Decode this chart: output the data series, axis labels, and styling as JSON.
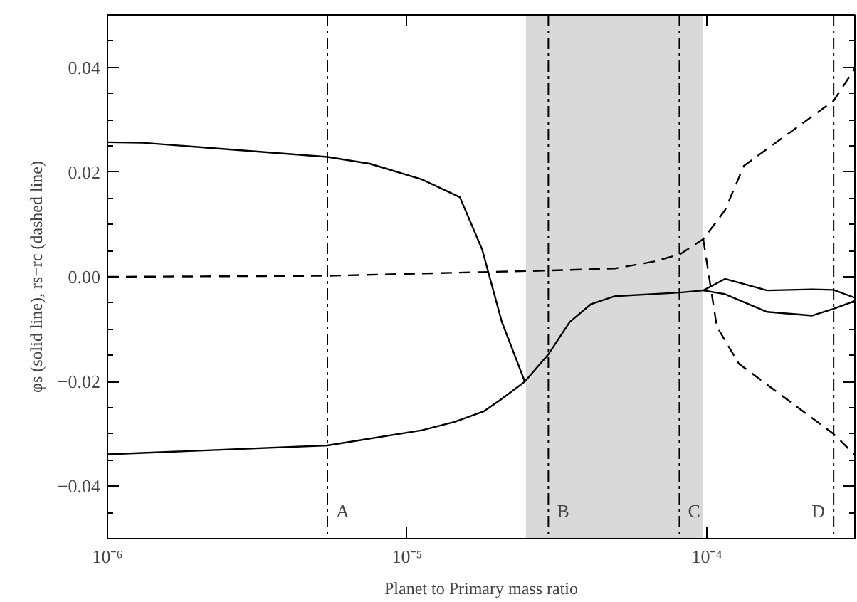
{
  "chart_data": {
    "type": "line",
    "xlabel": "Planet to Primary mass ratio",
    "ylabel": "φs (solid line), rs−rc (dashed line)",
    "log": "x",
    "grid": false,
    "marker": "none",
    "xlim": [
      1e-06,
      0.000312
    ],
    "ylim": [
      -0.05,
      0.05
    ],
    "xticks": [
      {
        "value": 1e-06,
        "label": "10⁻⁶"
      },
      {
        "value": 1e-05,
        "label": "10⁻⁵"
      },
      {
        "value": 0.0001,
        "label": "10⁻⁴"
      }
    ],
    "yticks": [
      {
        "value": -0.04,
        "label": "−0.04"
      },
      {
        "value": -0.02,
        "label": "−0.02"
      },
      {
        "value": 0,
        "label": "0.00"
      },
      {
        "value": 0.02,
        "label": "0.02"
      },
      {
        "value": 0.04,
        "label": "0.04"
      }
    ],
    "series": [
      {
        "color": "#000000",
        "line_style": "solid",
        "x": [
          1e-06,
          1.31e-06,
          5.42e-06,
          7.5e-06,
          1.12e-05,
          1.5e-05,
          1.78e-05,
          2.07e-05,
          2.47e-05
        ],
        "values": [
          0.0257,
          0.0256,
          0.0229,
          0.0216,
          0.0186,
          0.0152,
          0.0052,
          -0.0086,
          -0.02
        ]
      },
      {
        "color": "#000000",
        "line_style": "solid",
        "x": [
          1e-06,
          5.42e-06,
          1.12e-05,
          1.44e-05,
          1.8e-05,
          2.07e-05,
          2.47e-05,
          2.96e-05,
          3.49e-05,
          4.11e-05,
          4.94e-05,
          8.14e-05,
          9.73e-05,
          0.000115,
          0.000159,
          0.000225,
          0.000265,
          0.000312
        ],
        "values": [
          -0.0339,
          -0.0322,
          -0.0293,
          -0.0277,
          -0.0257,
          -0.0233,
          -0.02,
          -0.0148,
          -0.0086,
          -0.0052,
          -0.0037,
          -0.003,
          -0.0026,
          -0.0004,
          -0.0026,
          -0.0024,
          -0.0025,
          -0.004
        ]
      },
      {
        "color": "#000000",
        "line_style": "solid",
        "x": [
          9.73e-05,
          0.000115,
          0.000159,
          0.000225,
          0.000265,
          0.000312
        ],
        "values": [
          -0.0026,
          -0.0033,
          -0.0067,
          -0.0074,
          -0.0061,
          -0.0046
        ]
      },
      {
        "color": "#000000",
        "line_style": "dashed",
        "x": [
          1e-06,
          5.42e-06,
          2.96e-05,
          4.94e-05,
          6.64e-05,
          8.14e-05,
          9.73e-05,
          0.000115,
          0.000133,
          0.000265,
          0.000312
        ],
        "values": [
          0.0,
          0.0002,
          0.0012,
          0.0016,
          0.0029,
          0.0043,
          0.0072,
          0.0127,
          0.0212,
          0.0336,
          0.0398
        ]
      },
      {
        "color": "#000000",
        "line_style": "dashed",
        "x": [
          9.73e-05,
          0.000108,
          0.000128,
          0.000265,
          0.000312
        ],
        "values": [
          0.0072,
          -0.0095,
          -0.0166,
          -0.03,
          -0.034
        ]
      }
    ],
    "ref_lines": [
      {
        "axis": "x",
        "value": 5.42e-06,
        "label": "A",
        "line_style": "dashdot",
        "color": "#000000"
      },
      {
        "axis": "x",
        "value": 2.96e-05,
        "label": "B",
        "line_style": "dashdot",
        "color": "#000000"
      },
      {
        "axis": "x",
        "value": 8.1e-05,
        "label": "C",
        "line_style": "dashdot",
        "color": "#000000"
      },
      {
        "axis": "x",
        "value": 0.000265,
        "label": "D",
        "line_style": "dashdot",
        "color": "#000000"
      }
    ],
    "bands": [
      {
        "axis": "x",
        "from": 2.49e-05,
        "to": 9.7e-05,
        "color": "#d9d9d9"
      }
    ]
  }
}
